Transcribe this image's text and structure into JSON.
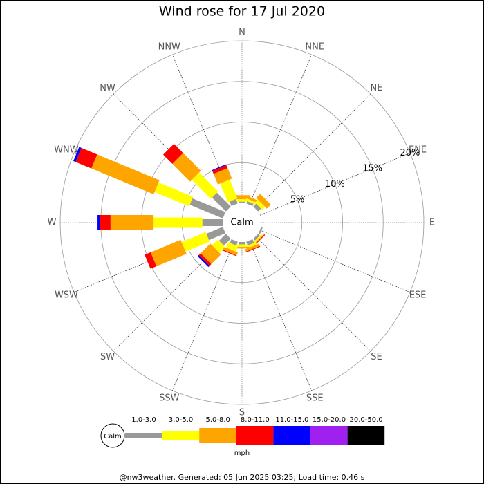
{
  "chart_data": {
    "type": "windrose",
    "title": "Wind rose for 17 Jul 2020",
    "directions": [
      "N",
      "NNE",
      "NE",
      "ENE",
      "E",
      "ESE",
      "SE",
      "SSE",
      "S",
      "SSW",
      "SW",
      "WSW",
      "W",
      "WNW",
      "NW",
      "NNW"
    ],
    "calm_label": "Calm",
    "rlim": [
      0,
      20
    ],
    "rticks": [
      {
        "value": 5,
        "label": "5%"
      },
      {
        "value": 10,
        "label": "10%"
      },
      {
        "value": 15,
        "label": "15%"
      },
      {
        "value": 20,
        "label": "20%"
      }
    ],
    "unit": "mph",
    "series": [
      {
        "name": "1.0-3.0",
        "color": "#999999",
        "values": [
          0.2,
          0.3,
          0.5,
          0,
          0,
          0.2,
          0.3,
          0.5,
          0.3,
          0.5,
          1.2,
          2.2,
          2.5,
          4.4,
          2.4,
          0.6
        ]
      },
      {
        "name": "3.0-5.0",
        "color": "#ffff00",
        "values": [
          0.3,
          0.3,
          0.5,
          0,
          0,
          0,
          0.2,
          0.3,
          0.3,
          0.7,
          1.0,
          3.2,
          6.0,
          4.6,
          3.3,
          2.5
        ]
      },
      {
        "name": "5.0-8.0",
        "color": "#ffa500",
        "values": [
          0.5,
          0.3,
          0.7,
          0,
          0,
          0,
          0.1,
          0.3,
          0.2,
          0.4,
          1.7,
          4.0,
          5.3,
          8.3,
          3.1,
          1.4
        ]
      },
      {
        "name": "8.0-11.0",
        "color": "#ff0000",
        "values": [
          0,
          0,
          0,
          0,
          0,
          0,
          0.1,
          0.1,
          0,
          0.1,
          0.3,
          0.8,
          1.3,
          2.1,
          1.6,
          0.4
        ]
      },
      {
        "name": "11.0-15.0",
        "color": "#0000ff",
        "values": [
          0,
          0,
          0,
          0,
          0,
          0,
          0,
          0,
          0,
          0,
          0.2,
          0,
          0.3,
          0.3,
          0,
          0.1
        ]
      },
      {
        "name": "15.0-20.0",
        "color": "#a020f0",
        "values": [
          0,
          0,
          0,
          0,
          0,
          0,
          0,
          0,
          0,
          0,
          0,
          0,
          0,
          0,
          0,
          0
        ]
      },
      {
        "name": "20.0-50.0",
        "color": "#000000",
        "values": [
          0,
          0,
          0,
          0,
          0,
          0,
          0,
          0,
          0,
          0,
          0,
          0,
          0,
          0,
          0,
          0
        ]
      }
    ]
  },
  "footer": "@nw3weather. Generated: 05 Jun 2025 03:25; Load time: 0.46 s"
}
